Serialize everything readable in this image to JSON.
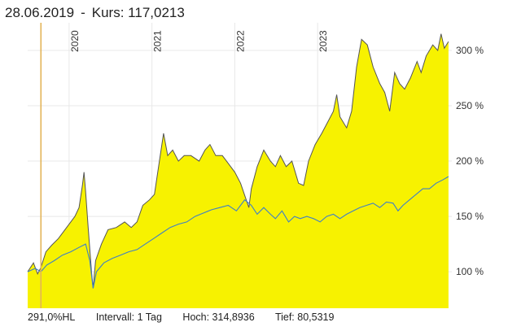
{
  "header": {
    "date": "28.06.2019",
    "separator": "-",
    "price_label": "Kurs: 117,0213"
  },
  "footer": {
    "change": "291,0%HL",
    "interval": "Intervall: 1 Tag",
    "high": "Hoch: 314,8936",
    "low": "Tief: 80,5319"
  },
  "colors": {
    "area_fill": "#f7f200",
    "main_line": "#555555",
    "benchmark_line": "#3d7fc8",
    "marker_line": "#e3b458",
    "grid": "#e8e8e8"
  },
  "chart_data": {
    "type": "area",
    "x_tick_labels": [
      "2020",
      "2021",
      "2022",
      "2023"
    ],
    "y_tick_labels": [
      "100 %",
      "150 %",
      "200 %",
      "250 %",
      "300 %"
    ],
    "y_ticks": [
      100,
      150,
      200,
      250,
      300
    ],
    "xlim": [
      2019.33,
      2024.45
    ],
    "ylim": [
      67,
      325
    ],
    "marker_x": 2019.49,
    "x_ticks": [
      2019.83,
      2020.83,
      2021.83,
      2022.83
    ],
    "series": [
      {
        "role": "main",
        "points": [
          [
            2019.33,
            100
          ],
          [
            2019.4,
            108
          ],
          [
            2019.45,
            98
          ],
          [
            2019.49,
            104
          ],
          [
            2019.55,
            118
          ],
          [
            2019.62,
            124
          ],
          [
            2019.7,
            130
          ],
          [
            2019.78,
            138
          ],
          [
            2019.85,
            145
          ],
          [
            2019.9,
            150
          ],
          [
            2019.95,
            158
          ],
          [
            2019.99,
            178
          ],
          [
            2020.01,
            190
          ],
          [
            2020.03,
            172
          ],
          [
            2020.06,
            140
          ],
          [
            2020.1,
            100
          ],
          [
            2020.12,
            85
          ],
          [
            2020.15,
            110
          ],
          [
            2020.22,
            125
          ],
          [
            2020.3,
            138
          ],
          [
            2020.4,
            140
          ],
          [
            2020.5,
            145
          ],
          [
            2020.58,
            140
          ],
          [
            2020.65,
            145
          ],
          [
            2020.72,
            160
          ],
          [
            2020.8,
            165
          ],
          [
            2020.86,
            170
          ],
          [
            2020.92,
            200
          ],
          [
            2020.97,
            225
          ],
          [
            2021.02,
            205
          ],
          [
            2021.08,
            210
          ],
          [
            2021.15,
            200
          ],
          [
            2021.22,
            205
          ],
          [
            2021.3,
            205
          ],
          [
            2021.4,
            200
          ],
          [
            2021.47,
            210
          ],
          [
            2021.53,
            215
          ],
          [
            2021.6,
            205
          ],
          [
            2021.68,
            205
          ],
          [
            2021.75,
            198
          ],
          [
            2021.83,
            190
          ],
          [
            2021.9,
            180
          ],
          [
            2022.0,
            158
          ],
          [
            2022.03,
            175
          ],
          [
            2022.1,
            195
          ],
          [
            2022.18,
            210
          ],
          [
            2022.26,
            200
          ],
          [
            2022.32,
            195
          ],
          [
            2022.38,
            205
          ],
          [
            2022.45,
            195
          ],
          [
            2022.52,
            200
          ],
          [
            2022.6,
            180
          ],
          [
            2022.66,
            178
          ],
          [
            2022.72,
            200
          ],
          [
            2022.8,
            215
          ],
          [
            2022.88,
            225
          ],
          [
            2022.95,
            235
          ],
          [
            2023.02,
            245
          ],
          [
            2023.06,
            260
          ],
          [
            2023.1,
            240
          ],
          [
            2023.18,
            230
          ],
          [
            2023.24,
            245
          ],
          [
            2023.3,
            285
          ],
          [
            2023.36,
            310
          ],
          [
            2023.43,
            305
          ],
          [
            2023.5,
            285
          ],
          [
            2023.58,
            270
          ],
          [
            2023.64,
            262
          ],
          [
            2023.7,
            245
          ],
          [
            2023.76,
            280
          ],
          [
            2023.82,
            270
          ],
          [
            2023.88,
            265
          ],
          [
            2023.95,
            275
          ],
          [
            2024.03,
            290
          ],
          [
            2024.08,
            280
          ],
          [
            2024.14,
            295
          ],
          [
            2024.22,
            305
          ],
          [
            2024.28,
            300
          ],
          [
            2024.32,
            315
          ],
          [
            2024.36,
            302
          ],
          [
            2024.41,
            308
          ]
        ]
      },
      {
        "role": "benchmark",
        "points": [
          [
            2019.33,
            100
          ],
          [
            2019.42,
            103
          ],
          [
            2019.49,
            100
          ],
          [
            2019.56,
            106
          ],
          [
            2019.65,
            110
          ],
          [
            2019.75,
            115
          ],
          [
            2019.85,
            118
          ],
          [
            2019.95,
            122
          ],
          [
            2020.03,
            125
          ],
          [
            2020.08,
            110
          ],
          [
            2020.12,
            85
          ],
          [
            2020.16,
            100
          ],
          [
            2020.25,
            108
          ],
          [
            2020.35,
            112
          ],
          [
            2020.45,
            115
          ],
          [
            2020.55,
            118
          ],
          [
            2020.65,
            120
          ],
          [
            2020.75,
            125
          ],
          [
            2020.85,
            130
          ],
          [
            2020.95,
            135
          ],
          [
            2021.05,
            140
          ],
          [
            2021.15,
            143
          ],
          [
            2021.25,
            145
          ],
          [
            2021.35,
            150
          ],
          [
            2021.45,
            153
          ],
          [
            2021.55,
            156
          ],
          [
            2021.65,
            158
          ],
          [
            2021.75,
            160
          ],
          [
            2021.85,
            155
          ],
          [
            2021.95,
            165
          ],
          [
            2022.03,
            160
          ],
          [
            2022.1,
            152
          ],
          [
            2022.18,
            158
          ],
          [
            2022.26,
            152
          ],
          [
            2022.32,
            148
          ],
          [
            2022.4,
            155
          ],
          [
            2022.48,
            145
          ],
          [
            2022.55,
            150
          ],
          [
            2022.62,
            148
          ],
          [
            2022.7,
            150
          ],
          [
            2022.78,
            148
          ],
          [
            2022.86,
            145
          ],
          [
            2022.94,
            150
          ],
          [
            2023.02,
            152
          ],
          [
            2023.1,
            148
          ],
          [
            2023.18,
            152
          ],
          [
            2023.26,
            155
          ],
          [
            2023.34,
            158
          ],
          [
            2023.42,
            160
          ],
          [
            2023.5,
            162
          ],
          [
            2023.58,
            158
          ],
          [
            2023.66,
            163
          ],
          [
            2023.74,
            162
          ],
          [
            2023.8,
            155
          ],
          [
            2023.86,
            160
          ],
          [
            2023.94,
            165
          ],
          [
            2024.02,
            170
          ],
          [
            2024.1,
            175
          ],
          [
            2024.18,
            175
          ],
          [
            2024.26,
            180
          ],
          [
            2024.34,
            183
          ],
          [
            2024.41,
            186
          ]
        ]
      }
    ]
  }
}
